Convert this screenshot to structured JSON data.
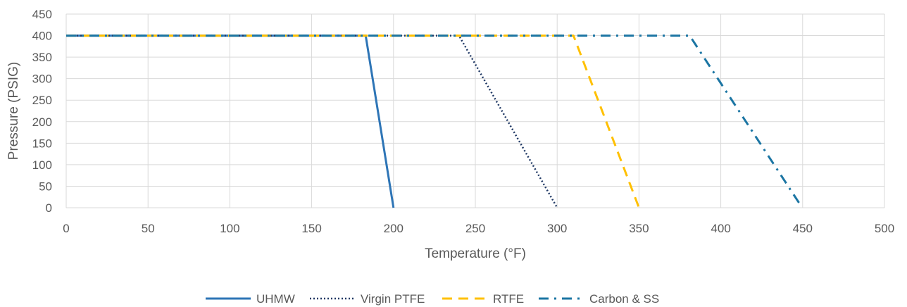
{
  "chart_data": {
    "type": "line",
    "xlabel": "Temperature (°F)",
    "ylabel": "Pressure (PSIG)",
    "xlim": [
      0,
      500
    ],
    "ylim": [
      0,
      450
    ],
    "x_ticks": [
      0,
      50,
      100,
      150,
      200,
      250,
      300,
      350,
      400,
      450,
      500
    ],
    "y_ticks": [
      0,
      50,
      100,
      150,
      200,
      250,
      300,
      350,
      400,
      450
    ],
    "grid": true,
    "legend_position": "bottom",
    "series": [
      {
        "name": "UHMW",
        "color": "#2E75B6",
        "dash": "solid",
        "points": [
          [
            0,
            400
          ],
          [
            183,
            400
          ],
          [
            200,
            0
          ]
        ]
      },
      {
        "name": "Virgin PTFE",
        "color": "#1F3864",
        "dash": "dotted",
        "points": [
          [
            0,
            400
          ],
          [
            240,
            400
          ],
          [
            300,
            0
          ]
        ]
      },
      {
        "name": "RTFE",
        "color": "#FFC000",
        "dash": "dashed",
        "points": [
          [
            0,
            400
          ],
          [
            310,
            400
          ],
          [
            350,
            0
          ]
        ]
      },
      {
        "name": "Carbon & SS",
        "color": "#1B75A3",
        "dash": "dashdot",
        "points": [
          [
            0,
            400
          ],
          [
            381,
            400
          ],
          [
            448,
            10
          ]
        ]
      }
    ]
  }
}
